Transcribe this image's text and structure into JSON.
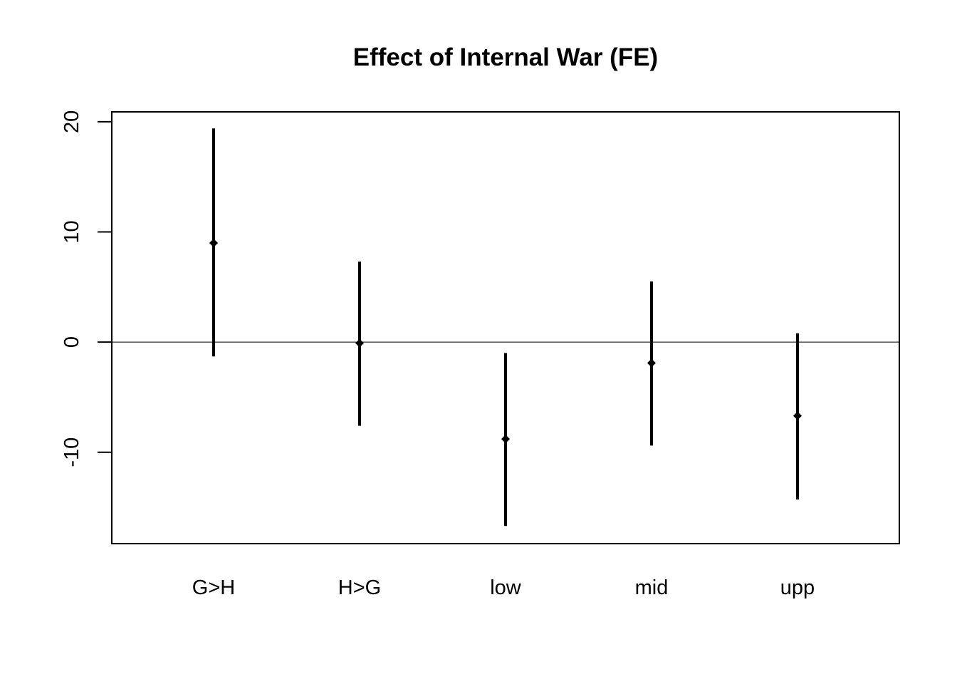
{
  "chart_data": {
    "type": "errorbar",
    "title": "Effect of Internal War (FE)",
    "xlabel": "",
    "ylabel": "",
    "categories": [
      "G>H",
      "H>G",
      "low",
      "mid",
      "upp"
    ],
    "estimates": [
      9.0,
      -0.1,
      -8.8,
      -1.9,
      -6.7
    ],
    "lower": [
      -1.3,
      -7.6,
      -16.7,
      -9.4,
      -14.3
    ],
    "upper": [
      19.4,
      7.3,
      -1.0,
      5.5,
      0.8
    ],
    "ylim": [
      -18.3,
      20.9
    ],
    "yticks": [
      20,
      10,
      0,
      -10
    ],
    "reference_line": 0,
    "grid": false,
    "legend": "none",
    "colors": {
      "marks": "#000000",
      "axis": "#000000",
      "background": "#ffffff"
    }
  }
}
